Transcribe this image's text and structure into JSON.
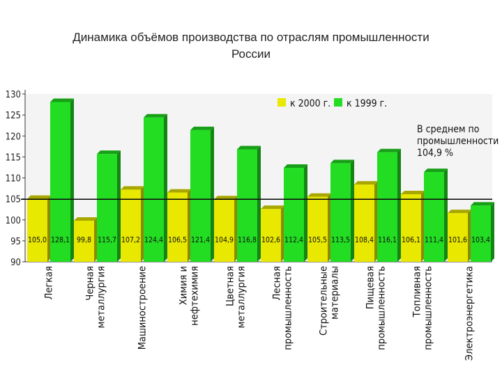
{
  "title_lines": [
    "Динамика объёмов производства по отраслям промышленности",
    "России"
  ],
  "chart_data": {
    "type": "bar",
    "title": "Динамика объёмов производства по отраслям промышленности России",
    "categories": [
      [
        "Легкая"
      ],
      [
        "Черная",
        "металлургия"
      ],
      [
        "Машиностроение"
      ],
      [
        "Химия и",
        "нефтехимия"
      ],
      [
        "Цветная",
        "металлургия"
      ],
      [
        "Лесная",
        "промышленность"
      ],
      [
        "Строительные",
        "материалы"
      ],
      [
        "Пищевая",
        "промышленность"
      ],
      [
        "Топливная",
        "промышленность"
      ],
      [
        "Электроэнергетика"
      ]
    ],
    "series": [
      {
        "name": "к 2000 г.",
        "color": "#e8e800",
        "values": [
          105.0,
          99.8,
          107.2,
          106.5,
          104.9,
          102.6,
          105.5,
          108.4,
          106.1,
          101.6
        ],
        "labels": [
          "105,0",
          "99,8",
          "107,2",
          "106,5",
          "104,9",
          "102,6",
          "105,5",
          "108,4",
          "106,1",
          "101,6"
        ]
      },
      {
        "name": "к 1999 г.",
        "color": "#22dd22",
        "values": [
          128.1,
          115.7,
          124.4,
          121.4,
          116.8,
          112.4,
          113.5,
          116.1,
          111.4,
          103.4
        ],
        "labels": [
          "128,1",
          "115,7",
          "124,4",
          "121,4",
          "116,8",
          "112,4",
          "113,5",
          "116,1",
          "111,4",
          "103,4"
        ]
      }
    ],
    "ylim": [
      90,
      130
    ],
    "yticks": [
      90,
      95,
      100,
      105,
      110,
      115,
      120,
      125,
      130
    ],
    "reference_line": 104.9,
    "annotation": [
      "В среднем по",
      "промышленности",
      "104,9 %"
    ],
    "legend_position": "top"
  }
}
